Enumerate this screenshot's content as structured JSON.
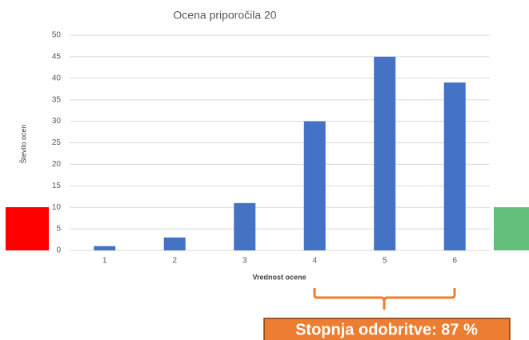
{
  "chart_data": {
    "type": "bar",
    "title": "Ocena priporočila 20",
    "x_label": "Vrednost ocene",
    "y_label": "Število ocen",
    "categories": [
      "1",
      "2",
      "3",
      "4",
      "5",
      "6"
    ],
    "values": [
      1,
      3,
      11,
      30,
      45,
      39
    ],
    "color": "#4472c4",
    "ylim": [
      0,
      50
    ],
    "yticks": [
      0,
      5,
      10,
      15,
      20,
      25,
      30,
      35,
      40,
      45,
      50
    ],
    "grid": true,
    "annotation": "Stopnja odobritve: 87 %"
  }
}
